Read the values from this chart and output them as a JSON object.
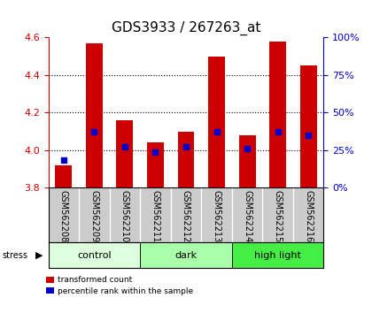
{
  "title": "GDS3933 / 267263_at",
  "samples": [
    "GSM562208",
    "GSM562209",
    "GSM562210",
    "GSM562211",
    "GSM562212",
    "GSM562213",
    "GSM562214",
    "GSM562215",
    "GSM562216"
  ],
  "bar_values": [
    3.92,
    4.57,
    4.16,
    4.04,
    4.1,
    4.5,
    4.08,
    4.58,
    4.45
  ],
  "bar_bottom": 3.8,
  "percentile_values": [
    3.95,
    4.1,
    4.02,
    3.99,
    4.02,
    4.1,
    4.01,
    4.1,
    4.08
  ],
  "ylim": [
    3.8,
    4.6
  ],
  "yticks": [
    3.8,
    4.0,
    4.2,
    4.4,
    4.6
  ],
  "right_yticks": [
    0,
    25,
    50,
    75,
    100
  ],
  "groups": [
    {
      "label": "control",
      "start": 0,
      "end": 3,
      "color": "#ddffdd"
    },
    {
      "label": "dark",
      "start": 3,
      "end": 6,
      "color": "#aaffaa"
    },
    {
      "label": "high light",
      "start": 6,
      "end": 9,
      "color": "#44ee44"
    }
  ],
  "stress_label": "stress",
  "bar_color": "#cc0000",
  "percentile_color": "#0000cc",
  "axis_color_left": "#cc0000",
  "axis_color_right": "#0000cc",
  "bg_plot": "#ffffff",
  "bg_label_row": "#cccccc",
  "label_fontsize": 7,
  "title_fontsize": 11
}
